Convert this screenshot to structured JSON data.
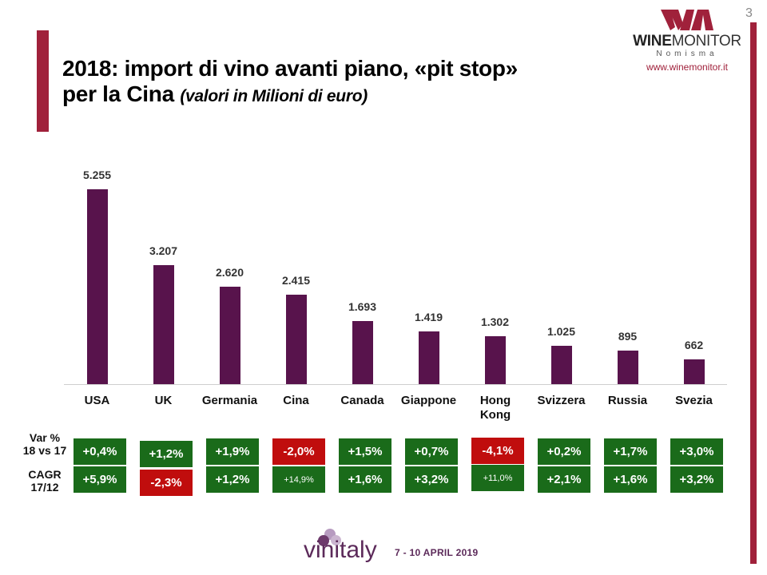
{
  "slide": {
    "page_number": "3",
    "title_line1": "2018: import di vino avanti piano, «pit stop»",
    "title_line2": "per la Cina",
    "subtitle": "(valori in Milioni di euro)"
  },
  "logo": {
    "name_bold": "WINE",
    "name_regular": "MONITOR",
    "sub": "Nomisma",
    "url": "www.winemonitor.it"
  },
  "footer": {
    "brand": "vinitaly",
    "dates": "7 - 10 APRIL 2019"
  },
  "table": {
    "row1_label_a": "Var %",
    "row1_label_b": "18 vs 17",
    "row2_label_a": "CAGR",
    "row2_label_b": "17/12"
  },
  "colors": {
    "bar": "#58134c",
    "accent": "#a0213b",
    "positive": "#1a6b1a",
    "negative": "#c00d0d"
  },
  "chart_data": {
    "type": "bar",
    "title": "2018: import di vino avanti piano, «pit stop» per la Cina",
    "subtitle": "(valori in Milioni di euro)",
    "xlabel": "",
    "ylabel": "Milioni di euro",
    "grid": false,
    "legend": null,
    "ylim": [
      0,
      5500
    ],
    "categories": [
      "USA",
      "UK",
      "Germania",
      "Cina",
      "Canada",
      "Giappone",
      "Hong Kong",
      "Svizzera",
      "Russia",
      "Svezia"
    ],
    "values": [
      5255,
      3207,
      2620,
      2415,
      1693,
      1419,
      1302,
      1025,
      895,
      662
    ],
    "value_labels": [
      "5.255",
      "3.207",
      "2.620",
      "2.415",
      "1.693",
      "1.419",
      "1.302",
      "1.025",
      "895",
      "662"
    ],
    "annotations": {
      "var_18_vs_17": [
        "+0,4%",
        "+1,2%",
        "+1,9%",
        "-2,0%",
        "+1,5%",
        "+0,7%",
        "-4,1%",
        "+0,2%",
        "+1,7%",
        "+3,0%"
      ],
      "cagr_17_12": [
        "+5,9%",
        "-2,3%",
        "+1,2%",
        "+14,9%",
        "+1,6%",
        "+3,2%",
        "+11,0%",
        "+2,1%",
        "+1,6%",
        "+3,2%"
      ]
    }
  }
}
